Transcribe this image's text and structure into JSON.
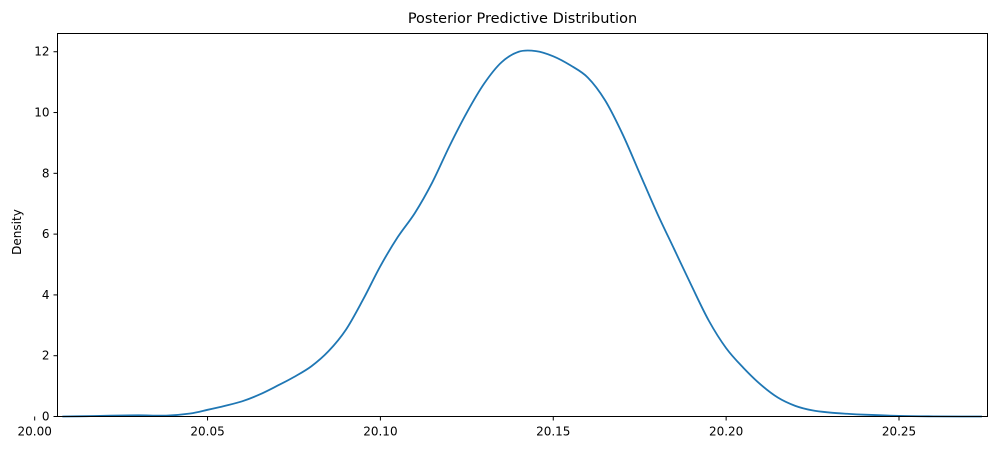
{
  "chart_data": {
    "type": "line",
    "title": "Posterior Predictive Distribution",
    "xlabel": "",
    "ylabel": "Density",
    "xlim": [
      20.0066,
      20.2756
    ],
    "ylim": [
      0,
      12.6
    ],
    "x_ticks": [
      {
        "value": 20.0,
        "label": "20.00"
      },
      {
        "value": 20.05,
        "label": "20.05"
      },
      {
        "value": 20.1,
        "label": "20.10"
      },
      {
        "value": 20.15,
        "label": "20.15"
      },
      {
        "value": 20.2,
        "label": "20.20"
      },
      {
        "value": 20.25,
        "label": "20.25"
      }
    ],
    "y_ticks": [
      {
        "value": 0,
        "label": "0"
      },
      {
        "value": 2,
        "label": "2"
      },
      {
        "value": 4,
        "label": "4"
      },
      {
        "value": 6,
        "label": "6"
      },
      {
        "value": 8,
        "label": "8"
      },
      {
        "value": 10,
        "label": "10"
      },
      {
        "value": 12,
        "label": "12"
      }
    ],
    "grid": false,
    "legend": "none",
    "line_color": "#1f77b4",
    "series": [
      {
        "x": [
          20.008,
          20.015,
          20.022,
          20.03,
          20.038,
          20.045,
          20.05,
          20.055,
          20.06,
          20.065,
          20.07,
          20.075,
          20.08,
          20.085,
          20.09,
          20.095,
          20.1,
          20.105,
          20.11,
          20.115,
          20.12,
          20.125,
          20.13,
          20.135,
          20.14,
          20.145,
          20.15,
          20.155,
          20.16,
          20.165,
          20.17,
          20.175,
          20.18,
          20.185,
          20.19,
          20.195,
          20.2,
          20.205,
          20.21,
          20.215,
          20.22,
          20.225,
          20.23,
          20.235,
          20.24,
          20.25,
          20.26,
          20.268,
          20.274
        ],
        "y": [
          0.0,
          0.01,
          0.03,
          0.04,
          0.03,
          0.1,
          0.22,
          0.35,
          0.5,
          0.72,
          1.0,
          1.3,
          1.65,
          2.15,
          2.85,
          3.85,
          4.95,
          5.9,
          6.7,
          7.7,
          8.9,
          10.0,
          10.95,
          11.65,
          12.0,
          12.02,
          11.85,
          11.55,
          11.15,
          10.4,
          9.3,
          8.0,
          6.7,
          5.5,
          4.3,
          3.15,
          2.25,
          1.6,
          1.05,
          0.62,
          0.35,
          0.2,
          0.13,
          0.09,
          0.06,
          0.02,
          0.005,
          0.0,
          0.0
        ]
      }
    ]
  }
}
